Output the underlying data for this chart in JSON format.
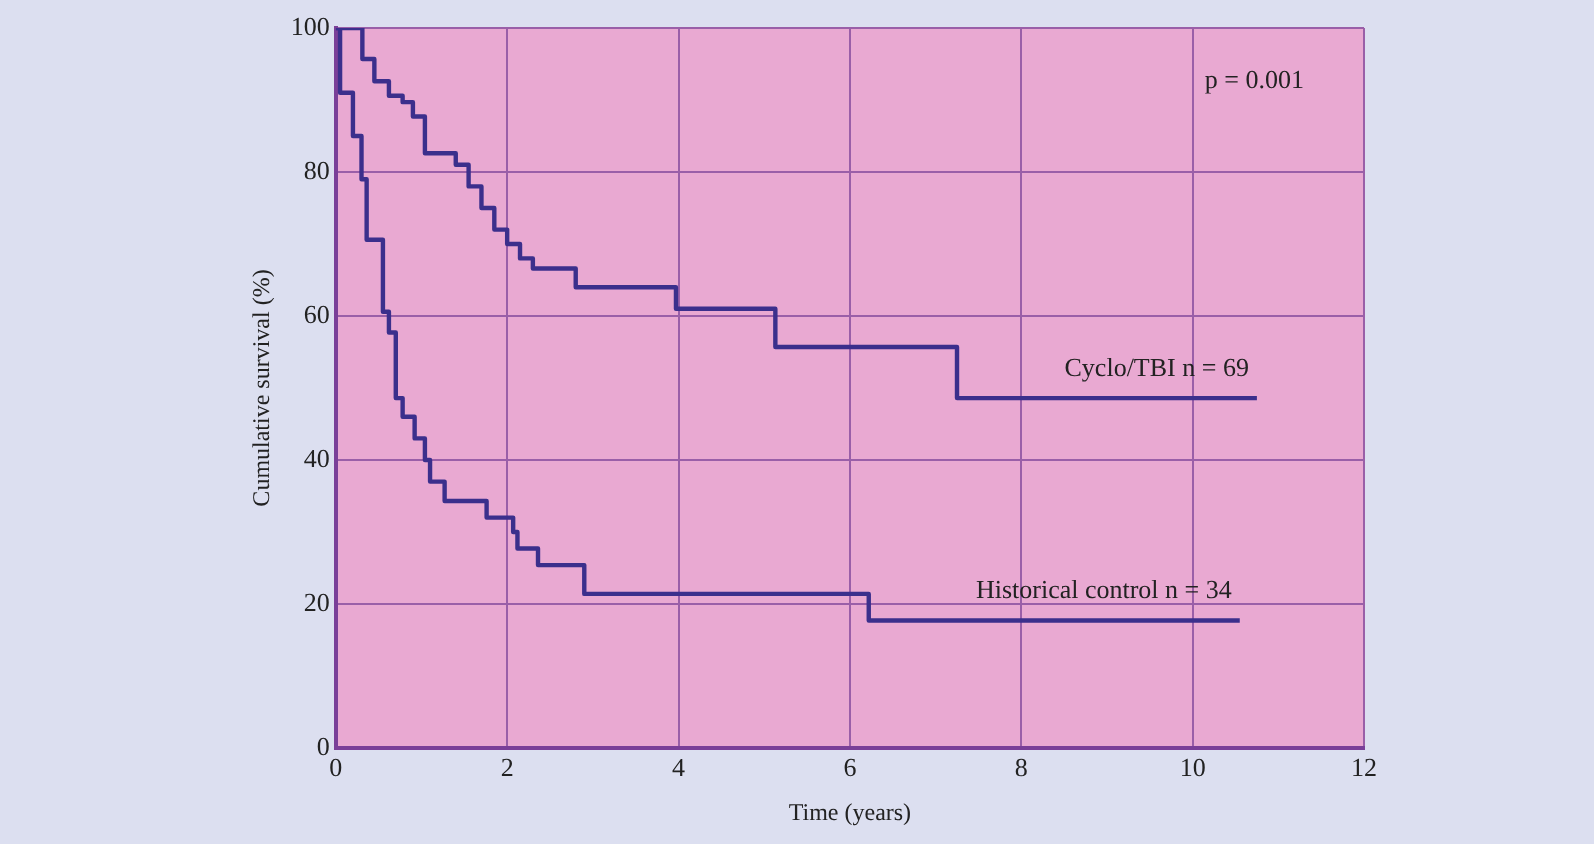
{
  "chart_data": {
    "type": "step",
    "xlabel": "Time (years)",
    "ylabel": "Cumulative survival (%)",
    "annotations": [
      "p = 0.001"
    ],
    "xlim": [
      0,
      12
    ],
    "xticks": [
      0,
      2,
      4,
      6,
      8,
      10,
      12
    ],
    "ylim": [
      0,
      100
    ],
    "yticks": [
      0,
      20,
      40,
      60,
      80,
      100
    ],
    "grid": true,
    "legend": false,
    "marker": "none",
    "line_style": "solid",
    "series": [
      {
        "name": "Cyclo/TBI n = 69",
        "color": "#3b2f8c",
        "x": [
          0,
          0.31,
          0.45,
          0.62,
          0.78,
          0.9,
          1.04,
          1.4,
          1.55,
          1.7,
          1.85,
          2.0,
          2.15,
          2.3,
          2.8,
          3.97,
          5.13,
          7.25,
          10.75
        ],
        "values": [
          100,
          95.7,
          92.6,
          90.6,
          89.7,
          87.7,
          82.6,
          81,
          78,
          75,
          72,
          70,
          68,
          66.6,
          64,
          61,
          55.7,
          48.6,
          48.6
        ]
      },
      {
        "name": "Historical control n = 34",
        "color": "#3b2f8c",
        "x": [
          0,
          0.05,
          0.2,
          0.3,
          0.36,
          0.55,
          0.62,
          0.7,
          0.78,
          0.92,
          1.04,
          1.1,
          1.27,
          1.76,
          2.07,
          2.12,
          2.36,
          2.9,
          6.22,
          10.55
        ],
        "values": [
          100,
          91,
          85,
          79,
          70.6,
          60.6,
          57.7,
          48.6,
          46,
          43,
          40,
          37,
          34.3,
          32,
          30,
          27.7,
          25.4,
          21.4,
          17.7,
          17.7
        ]
      }
    ]
  }
}
